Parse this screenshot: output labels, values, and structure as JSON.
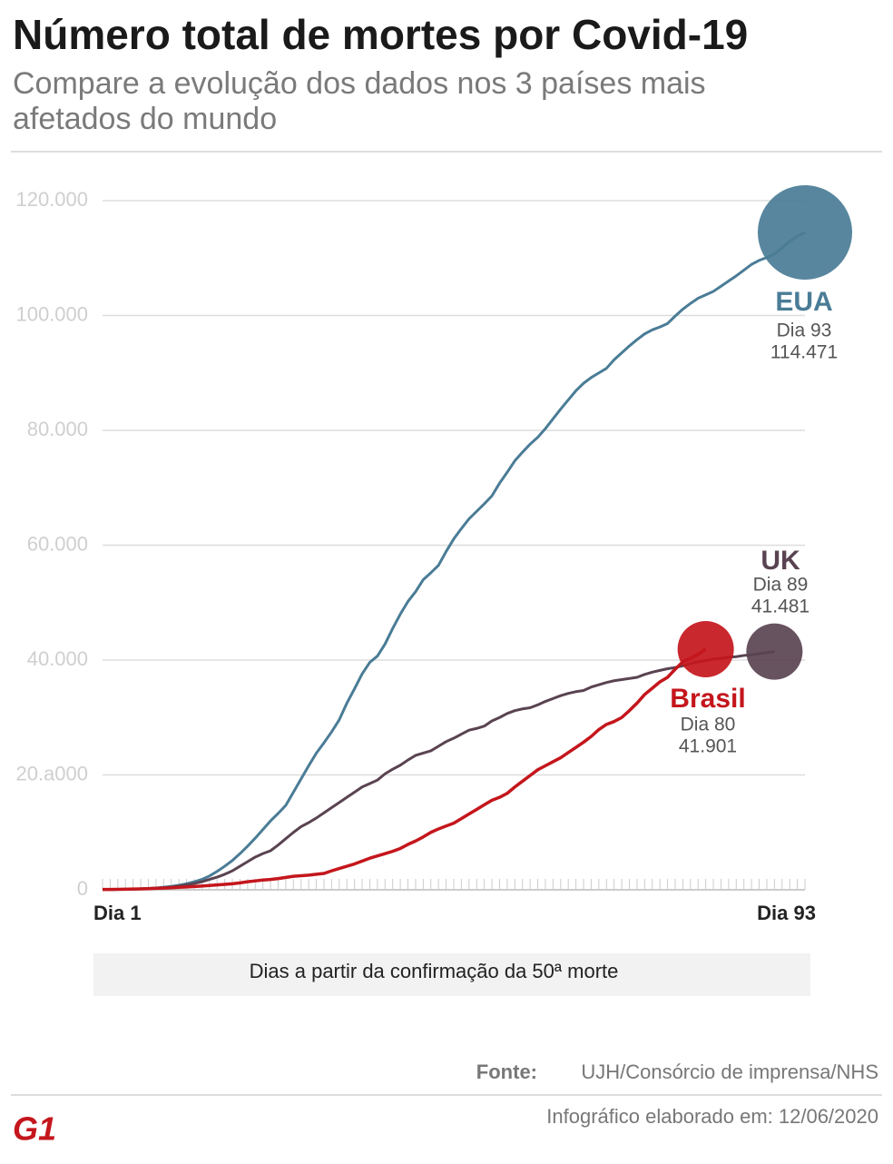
{
  "chart_data": {
    "type": "line",
    "title": "Número total de mortes por Covid-19",
    "subtitle": [
      "Compare a evolução dos dados nos 3 países mais",
      "afetados do mundo"
    ],
    "xlabel": "Dias a partir da confirmação da 50ª morte",
    "x": [
      1,
      2,
      3,
      4,
      5,
      6,
      7,
      8,
      9,
      10,
      11,
      12,
      13,
      14,
      15,
      16,
      17,
      18,
      19,
      20,
      21,
      22,
      23,
      24,
      25,
      26,
      27,
      28,
      29,
      30,
      31,
      32,
      33,
      34,
      35,
      36,
      37,
      38,
      39,
      40,
      41,
      42,
      43,
      44,
      45,
      46,
      47,
      48,
      49,
      50,
      51,
      52,
      53,
      54,
      55,
      56,
      57,
      58,
      59,
      60,
      61,
      62,
      63,
      64,
      65,
      66,
      67,
      68,
      69,
      70,
      71,
      72,
      73,
      74,
      75,
      76,
      77,
      78,
      79,
      80,
      81,
      82,
      83,
      84,
      85,
      86,
      87,
      88,
      89,
      90,
      91,
      92,
      93
    ],
    "xlim": [
      1,
      93
    ],
    "xticks": [
      {
        "value": 1,
        "label": "Dia 1"
      },
      {
        "value": 93,
        "label": "Dia 93"
      }
    ],
    "ylim": [
      0,
      120000
    ],
    "yticks": [
      {
        "value": 0,
        "label": "0"
      },
      {
        "value": 20000,
        "label": "20.a000"
      },
      {
        "value": 40000,
        "label": "40.000"
      },
      {
        "value": 60000,
        "label": "60.000"
      },
      {
        "value": 80000,
        "label": "80.000"
      },
      {
        "value": 100000,
        "label": "100.000"
      },
      {
        "value": 120000,
        "label": "120.000"
      }
    ],
    "grid": true,
    "series": [
      {
        "name": "EUA",
        "color": "#4a7c96",
        "end_day_label": "Dia 93",
        "end_value_label": "114.471",
        "values": [
          50,
          60,
          70,
          90,
          120,
          170,
          230,
          320,
          450,
          600,
          800,
          1050,
          1400,
          1800,
          2400,
          3200,
          4100,
          5100,
          6300,
          7600,
          9000,
          10500,
          12000,
          13300,
          14700,
          17000,
          19300,
          21600,
          23800,
          25600,
          27500,
          29600,
          32500,
          35000,
          37600,
          39600,
          40700,
          42800,
          45500,
          48000,
          50200,
          51900,
          54000,
          55200,
          56500,
          58900,
          61100,
          62900,
          64600,
          65900,
          67200,
          68600,
          70800,
          72700,
          74700,
          76200,
          77600,
          78800,
          80300,
          82000,
          83700,
          85300,
          86900,
          88200,
          89200,
          90000,
          90800,
          92300,
          93500,
          94700,
          95800,
          96800,
          97500,
          98000,
          98600,
          99900,
          101100,
          102100,
          103000,
          103600,
          104200,
          105100,
          106000,
          106900,
          107900,
          108900,
          109600,
          110100,
          110700,
          111800,
          112900,
          113800,
          114471
        ]
      },
      {
        "name": "UK",
        "color": "#5a4351",
        "end_day_label": "Dia 89",
        "end_value_label": "41.481",
        "values": [
          50,
          60,
          70,
          90,
          110,
          150,
          200,
          270,
          360,
          480,
          650,
          850,
          1100,
          1400,
          1800,
          2200,
          2700,
          3300,
          4100,
          4900,
          5700,
          6300,
          6800,
          7800,
          8900,
          10000,
          11000,
          11700,
          12500,
          13400,
          14300,
          15200,
          16100,
          17000,
          17900,
          18500,
          19100,
          20200,
          21000,
          21700,
          22600,
          23400,
          23800,
          24200,
          25000,
          25800,
          26400,
          27100,
          27800,
          28100,
          28500,
          29400,
          30000,
          30700,
          31200,
          31500,
          31700,
          32200,
          32800,
          33300,
          33800,
          34200,
          34500,
          34700,
          35300,
          35700,
          36100,
          36400,
          36600,
          36800,
          37000,
          37500,
          37900,
          38200,
          38500,
          38700,
          39000,
          39400,
          39700,
          39900,
          40200,
          40300,
          40500,
          40600,
          40800,
          40900,
          41100,
          41300,
          41481,
          null,
          null,
          null,
          null
        ]
      },
      {
        "name": "Brasil",
        "color": "#c4161c",
        "end_day_label": "Dia 80",
        "end_value_label": "41.901",
        "values": [
          50,
          60,
          80,
          100,
          130,
          160,
          200,
          250,
          300,
          360,
          430,
          500,
          580,
          660,
          750,
          850,
          950,
          1050,
          1200,
          1400,
          1550,
          1700,
          1800,
          1950,
          2150,
          2350,
          2450,
          2550,
          2700,
          2850,
          3300,
          3700,
          4100,
          4500,
          5000,
          5500,
          5900,
          6300,
          6700,
          7200,
          7900,
          8500,
          9200,
          10000,
          10600,
          11100,
          11600,
          12400,
          13200,
          14000,
          14800,
          15600,
          16100,
          16800,
          17900,
          18900,
          19900,
          20900,
          21600,
          22300,
          23000,
          23900,
          24800,
          25700,
          26700,
          27900,
          28800,
          29300,
          30000,
          31200,
          32500,
          34000,
          35100,
          36200,
          37000,
          38400,
          39700,
          40300,
          41000,
          41901,
          null,
          null,
          null,
          null,
          null,
          null,
          null,
          null,
          null,
          null,
          null,
          null,
          null
        ]
      }
    ],
    "source_label": "Fonte:",
    "source": "UJH/Consórcio de imprensa/NHS",
    "footer": "Infográfico elaborado em: 12/06/2020",
    "logo": "G1"
  }
}
